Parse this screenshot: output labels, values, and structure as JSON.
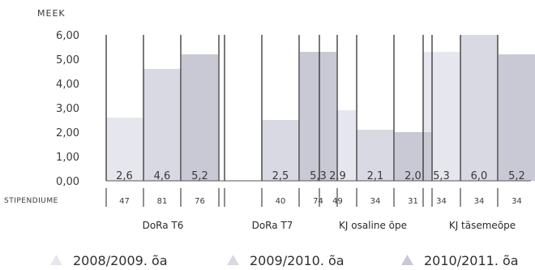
{
  "chart_data": {
    "type": "bar",
    "ylabel": "MEEK",
    "ylim": [
      0,
      6
    ],
    "yticks": [
      "0,00",
      "1,00",
      "2,00",
      "3,00",
      "4,00",
      "5,00",
      "6,00"
    ],
    "count_row_label": "STIPENDIUME",
    "categories": [
      "DoRa T6",
      "DoRa T7",
      "KJ osaline õpe",
      "KJ täsemeõpe"
    ],
    "series": [
      {
        "name": "2008/2009. õa",
        "color": "#e6e6ee",
        "values": [
          2.6,
          null,
          2.9,
          5.3
        ],
        "value_labels": [
          "2,6",
          "",
          "2,9",
          "5,3"
        ],
        "counts": [
          "47",
          "",
          "49",
          "34"
        ]
      },
      {
        "name": "2009/2010. õa",
        "color": "#d9d9e3",
        "values": [
          4.6,
          2.5,
          2.1,
          6.0
        ],
        "value_labels": [
          "4,6",
          "2,5",
          "2,1",
          "6,0"
        ],
        "counts": [
          "81",
          "40",
          "34",
          "34"
        ]
      },
      {
        "name": "2010/2011. õa",
        "color": "#c9c9d5",
        "values": [
          5.2,
          5.3,
          2.0,
          5.2
        ],
        "value_labels": [
          "5,2",
          "5,3",
          "2,0",
          "5,2"
        ],
        "counts": [
          "76",
          "74",
          "31",
          "34"
        ]
      }
    ],
    "legend_position": "bottom",
    "grid": false
  }
}
